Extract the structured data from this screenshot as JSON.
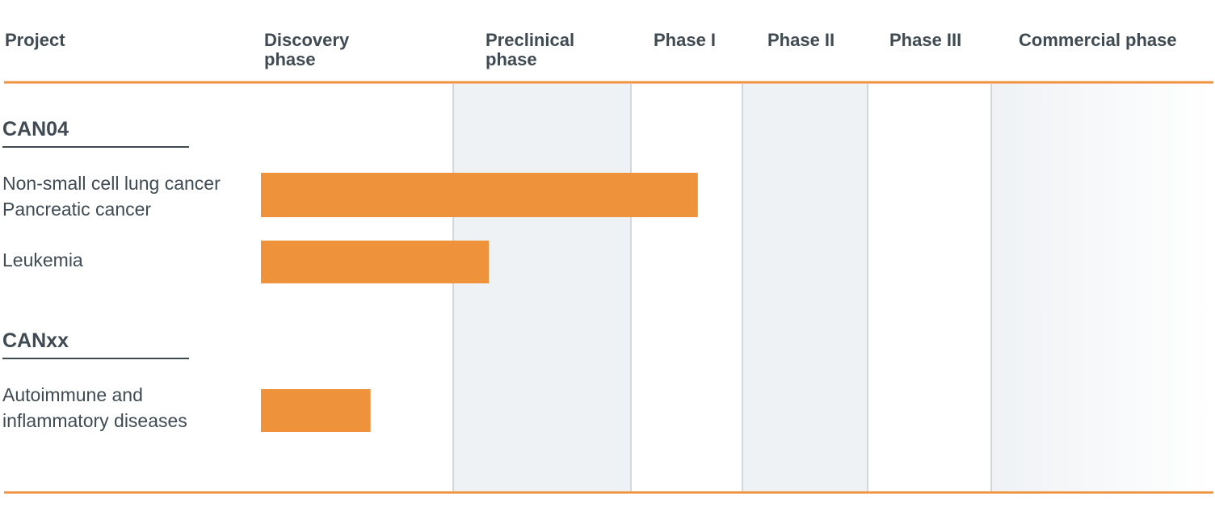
{
  "chart_data": {
    "type": "bar",
    "orientation": "horizontal",
    "column_header": "Project",
    "phases": [
      "Discovery\nphase",
      "Preclinical\nphase",
      "Phase I",
      "Phase II",
      "Phase III",
      "Commercial phase"
    ],
    "projects": [
      {
        "name": "CAN04",
        "indications": [
          {
            "label": "Non-small cell lung cancer\nPancreatic cancer",
            "progress": 2.6
          },
          {
            "label": "Leukemia",
            "progress": 1.2
          }
        ]
      },
      {
        "name": "CANxx",
        "indications": [
          {
            "label": "Autoimmune and\ninflammatory diseases",
            "progress": 0.57
          }
        ]
      }
    ],
    "progress_unit": "phases completed (Discovery = 0–1, Preclinical = 1–2, Phase I = 2–3, ...)",
    "colors": {
      "bar": "#ef923c",
      "rule": "#ef923c",
      "shade": "#eff2f5",
      "divider": "#c8cdd1",
      "text": "#3f4a52"
    }
  }
}
